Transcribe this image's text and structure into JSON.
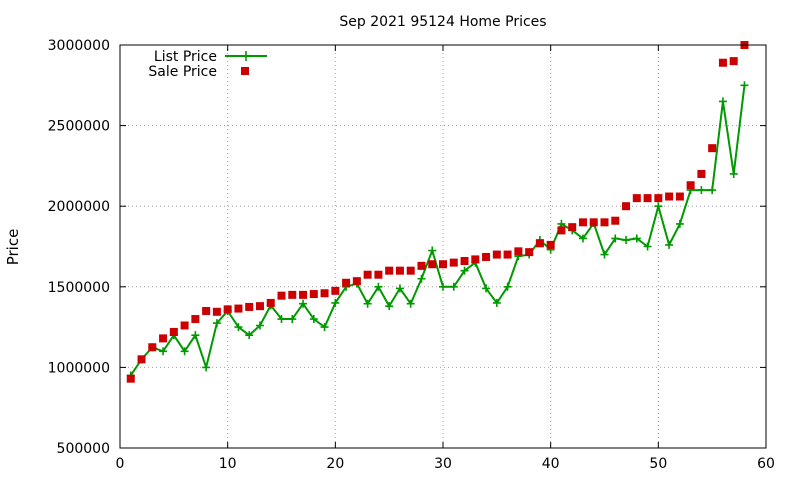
{
  "chart_data": {
    "type": "line",
    "title": "Sep 2021 95124 Home Prices",
    "xlabel": "",
    "ylabel": "Price",
    "xlim": [
      0,
      60
    ],
    "ylim": [
      500000,
      3000000
    ],
    "x_ticks": [
      0,
      10,
      20,
      30,
      40,
      50,
      60
    ],
    "y_ticks": [
      500000,
      1000000,
      1500000,
      2000000,
      2500000,
      3000000
    ],
    "x_tick_labels": [
      "0",
      "10",
      "20",
      "30",
      "40",
      "50",
      "60"
    ],
    "y_tick_labels": [
      "500000",
      "1000000",
      "1500000",
      "2000000",
      "2500000",
      "3000000"
    ],
    "grid": true,
    "legend": "top-left",
    "x": [
      1,
      2,
      3,
      4,
      5,
      6,
      7,
      8,
      9,
      10,
      11,
      12,
      13,
      14,
      15,
      16,
      17,
      18,
      19,
      20,
      21,
      22,
      23,
      24,
      25,
      26,
      27,
      28,
      29,
      30,
      31,
      32,
      33,
      34,
      35,
      36,
      37,
      38,
      39,
      40,
      41,
      42,
      43,
      44,
      45,
      46,
      47,
      48,
      49,
      50,
      51,
      52,
      53,
      54,
      55,
      56,
      57,
      58
    ],
    "series": [
      {
        "name": "List Price",
        "style": "line-plus",
        "color": "#009900",
        "values": [
          950000,
          1050000,
          1125000,
          1100000,
          1200000,
          1100000,
          1200000,
          1000000,
          1275000,
          1350000,
          1250000,
          1200000,
          1260000,
          1385000,
          1300000,
          1300000,
          1395000,
          1300000,
          1250000,
          1400000,
          1500000,
          1520000,
          1395000,
          1500000,
          1380000,
          1490000,
          1395000,
          1550000,
          1725000,
          1500000,
          1500000,
          1600000,
          1650000,
          1490000,
          1400000,
          1500000,
          1690000,
          1700000,
          1790000,
          1730000,
          1890000,
          1850000,
          1800000,
          1895000,
          1700000,
          1800000,
          1790000,
          1800000,
          1750000,
          2000000,
          1760000,
          1890000,
          2100000,
          2100000,
          2100000,
          2650000,
          2200000,
          2750000
        ]
      },
      {
        "name": "Sale Price",
        "style": "points-square",
        "color": "#cc0000",
        "values": [
          930000,
          1050000,
          1125000,
          1180000,
          1220000,
          1260000,
          1300000,
          1350000,
          1345000,
          1360000,
          1365000,
          1375000,
          1380000,
          1400000,
          1445000,
          1450000,
          1450000,
          1455000,
          1460000,
          1475000,
          1525000,
          1535000,
          1575000,
          1575000,
          1600000,
          1600000,
          1600000,
          1630000,
          1640000,
          1640000,
          1650000,
          1660000,
          1670000,
          1685000,
          1700000,
          1700000,
          1720000,
          1715000,
          1770000,
          1760000,
          1850000,
          1870000,
          1900000,
          1900000,
          1900000,
          1910000,
          2000000,
          2050000,
          2050000,
          2050000,
          2060000,
          2060000,
          2130000,
          2200000,
          2360000,
          2890000,
          2900000,
          3000000
        ]
      }
    ]
  }
}
